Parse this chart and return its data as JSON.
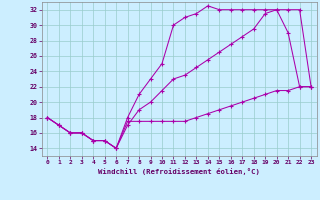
{
  "xlabel": "Windchill (Refroidissement éolien,°C)",
  "bg_color": "#cceeff",
  "grid_color": "#99cccc",
  "line_color": "#aa00aa",
  "ylim": [
    13.0,
    33.0
  ],
  "xlim": [
    -0.5,
    23.5
  ],
  "yticks": [
    14,
    16,
    18,
    20,
    22,
    24,
    26,
    28,
    30,
    32
  ],
  "xticks": [
    0,
    1,
    2,
    3,
    4,
    5,
    6,
    7,
    8,
    9,
    10,
    11,
    12,
    13,
    14,
    15,
    16,
    17,
    18,
    19,
    20,
    21,
    22,
    23
  ],
  "series1_x": [
    0,
    1,
    2,
    3,
    4,
    5,
    6,
    7,
    8,
    9,
    10,
    11,
    12,
    13,
    14,
    15,
    16,
    17,
    18,
    19,
    20,
    21,
    22,
    23
  ],
  "series1_y": [
    18,
    17,
    16,
    16,
    15,
    15,
    14,
    18,
    21,
    23,
    25,
    30,
    31,
    31.5,
    32.5,
    32,
    32,
    32,
    32,
    32,
    32,
    29,
    22,
    22
  ],
  "series2_x": [
    0,
    1,
    2,
    3,
    4,
    5,
    6,
    7,
    8,
    9,
    10,
    11,
    12,
    13,
    14,
    15,
    16,
    17,
    18,
    19,
    20,
    21,
    22,
    23
  ],
  "series2_y": [
    18,
    17,
    16,
    16,
    15,
    15,
    14,
    17,
    19,
    20,
    21.5,
    23,
    23.5,
    24.5,
    25.5,
    26.5,
    27.5,
    28.5,
    29.5,
    31.5,
    32,
    32,
    32,
    22
  ],
  "series3_x": [
    0,
    1,
    2,
    3,
    4,
    5,
    6,
    7,
    8,
    9,
    10,
    11,
    12,
    13,
    14,
    15,
    16,
    17,
    18,
    19,
    20,
    21,
    22,
    23
  ],
  "series3_y": [
    18,
    17,
    16,
    16,
    15,
    15,
    14,
    17.5,
    17.5,
    17.5,
    17.5,
    17.5,
    17.5,
    18,
    18.5,
    19,
    19.5,
    20,
    20.5,
    21,
    21.5,
    21.5,
    22,
    22
  ]
}
